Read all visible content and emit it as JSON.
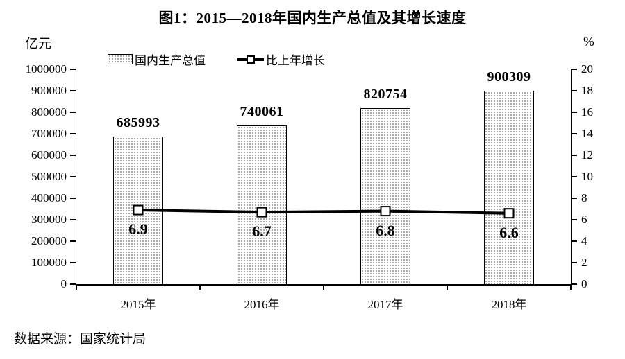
{
  "title": "图1：2015—2018年国内生产总值及其增长速度",
  "source_note": "数据来源：国家统计局",
  "legend": {
    "bar_label": "国内生产总值",
    "line_label": "比上年增长"
  },
  "left_axis": {
    "unit": "亿元",
    "ticks": [
      "0",
      "100000",
      "200000",
      "300000",
      "400000",
      "500000",
      "600000",
      "700000",
      "800000",
      "900000",
      "1000000"
    ]
  },
  "right_axis": {
    "unit": "%",
    "ticks": [
      "0",
      "2",
      "4",
      "6",
      "8",
      "10",
      "12",
      "14",
      "16",
      "18",
      "20"
    ]
  },
  "chart_data": {
    "type": "bar",
    "title": "图1：2015—2018年国内生产总值及其增长速度",
    "categories": [
      "2015年",
      "2016年",
      "2017年",
      "2018年"
    ],
    "series": [
      {
        "name": "国内生产总值",
        "type": "bar",
        "axis": "left",
        "values": [
          685993,
          740061,
          820754,
          900309
        ]
      },
      {
        "name": "比上年增长",
        "type": "line",
        "axis": "right",
        "values": [
          6.9,
          6.7,
          6.8,
          6.6
        ]
      }
    ],
    "left_ylabel": "亿元",
    "right_ylabel": "%",
    "left_ylim": [
      0,
      1000000
    ],
    "right_ylim": [
      0,
      20
    ],
    "grid": false,
    "legend_position": "top",
    "bar_fill": "dotted-pattern",
    "line_color": "#000000",
    "text_color": "#000000"
  }
}
